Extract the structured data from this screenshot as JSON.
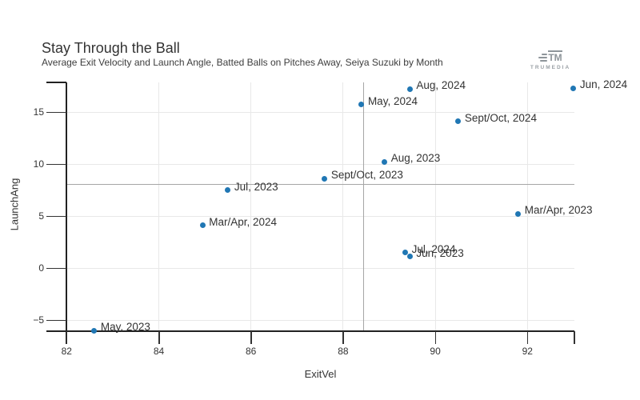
{
  "header": {
    "title": "Stay Through the Ball",
    "subtitle": "Average Exit Velocity and Launch Angle, Batted Balls on Pitches Away, Seiya Suzuki by Month",
    "logo_mark": "TM",
    "logo_text": "TRUMEDIA"
  },
  "chart_data": {
    "type": "scatter",
    "title": "Stay Through the Ball",
    "subtitle": "Average Exit Velocity and Launch Angle, Batted Balls on Pitches Away, Seiya Suzuki by Month",
    "xlabel": "ExitVel",
    "ylabel": "LaunchAng",
    "xlim": [
      82,
      93.05
    ],
    "ylim": [
      -6.1,
      17.85
    ],
    "x_ticks": [
      82,
      84,
      86,
      88,
      90,
      92
    ],
    "y_ticks": [
      -5,
      0,
      5,
      10,
      15
    ],
    "grid": true,
    "legend": "none",
    "point_color": "#2077b4",
    "reference_lines": {
      "x": 88.44,
      "y": 8.05
    },
    "points": [
      {
        "label": "May, 2023",
        "x": 82.6,
        "y": -6.0
      },
      {
        "label": "Mar/Apr, 2024",
        "x": 84.95,
        "y": 4.1
      },
      {
        "label": "Jul, 2023",
        "x": 85.5,
        "y": 7.5
      },
      {
        "label": "Sept/Oct, 2023",
        "x": 87.6,
        "y": 8.6
      },
      {
        "label": "May, 2024",
        "x": 88.4,
        "y": 15.7
      },
      {
        "label": "Aug, 2023",
        "x": 88.9,
        "y": 10.2
      },
      {
        "label": "Jul, 2024",
        "x": 89.35,
        "y": 1.5
      },
      {
        "label": "Jun, 2023",
        "x": 89.45,
        "y": 1.1
      },
      {
        "label": "Aug, 2024",
        "x": 89.45,
        "y": 17.2
      },
      {
        "label": "Sept/Oct, 2024",
        "x": 90.5,
        "y": 14.1
      },
      {
        "label": "Mar/Apr, 2023",
        "x": 91.8,
        "y": 5.2
      },
      {
        "label": "Jun, 2024",
        "x": 93.0,
        "y": 17.3
      }
    ]
  }
}
